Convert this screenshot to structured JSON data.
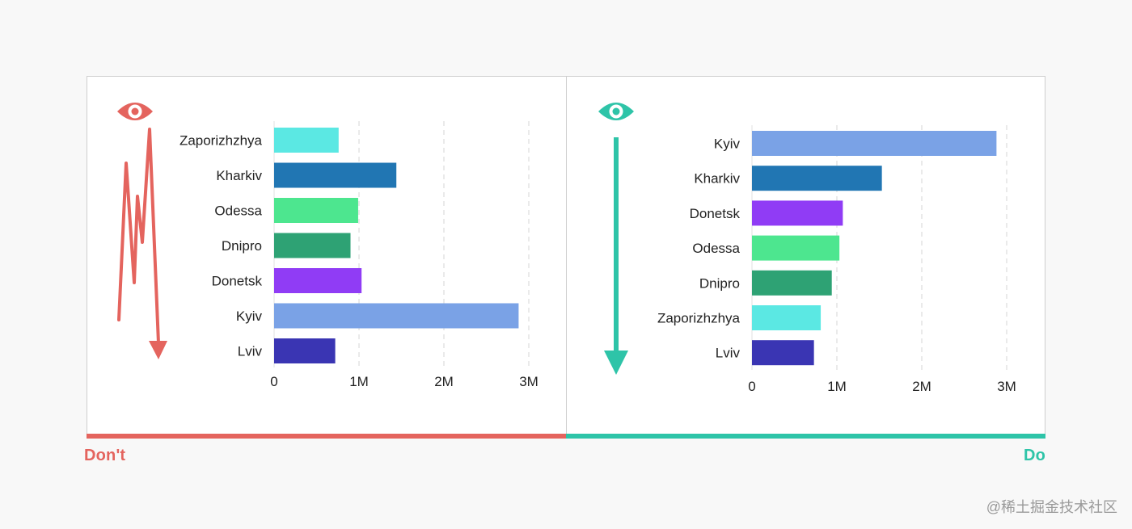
{
  "chart_data": [
    {
      "type": "bar",
      "orientation": "horizontal",
      "categories": [
        "Zaporizhzhya",
        "Kharkiv",
        "Odessa",
        "Dnipro",
        "Donetsk",
        "Kyiv",
        "Lviv"
      ],
      "values": [
        760000,
        1440000,
        990000,
        900000,
        1030000,
        2880000,
        720000
      ],
      "colors": [
        "#5be8e3",
        "#2176b3",
        "#4de68f",
        "#2ea274",
        "#903cf5",
        "#7aa2e6",
        "#3a35b3"
      ],
      "xticks": [
        "0",
        "1M",
        "2M",
        "3M"
      ],
      "xlim": [
        0,
        3000000
      ],
      "grid": "vertical dashed"
    },
    {
      "type": "bar",
      "orientation": "horizontal",
      "categories": [
        "Kyiv",
        "Kharkiv",
        "Donetsk",
        "Odessa",
        "Dnipro",
        "Zaporizhzhya",
        "Lviv"
      ],
      "values": [
        2880000,
        1530000,
        1070000,
        1030000,
        940000,
        810000,
        730000
      ],
      "colors": [
        "#7aa2e6",
        "#2176b3",
        "#903cf5",
        "#4de68f",
        "#2ea274",
        "#5be8e3",
        "#3a35b3"
      ],
      "xticks": [
        "0",
        "1M",
        "2M",
        "3M"
      ],
      "xlim": [
        0,
        3000000
      ],
      "grid": "vertical dashed"
    }
  ],
  "panels": {
    "left": {
      "verdict": "Don't",
      "accent": "#e4645e",
      "icon": "eye-icon",
      "arrow": "zigzag-arrow-icon"
    },
    "right": {
      "verdict": "Do",
      "accent": "#2ec4a8",
      "icon": "eye-icon",
      "arrow": "down-arrow-icon"
    }
  },
  "watermark": "@稀土掘金技术社区"
}
